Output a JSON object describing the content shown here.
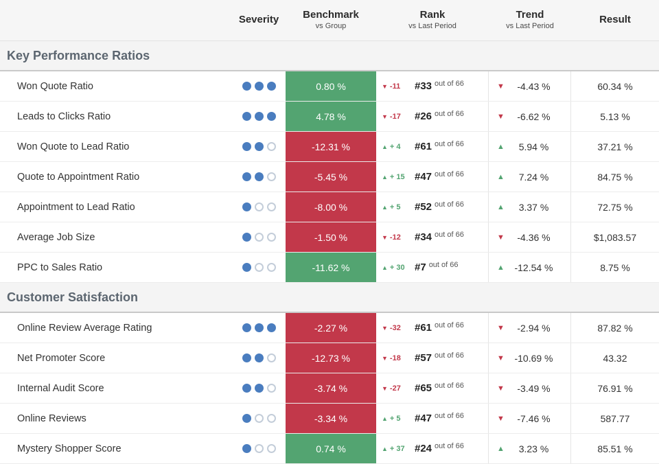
{
  "header": {
    "columns": [
      {
        "label": "Severity",
        "sub": ""
      },
      {
        "label": "Benchmark",
        "sub": "vs Group"
      },
      {
        "label": "Rank",
        "sub": "vs Last Period"
      },
      {
        "label": "Trend",
        "sub": "vs Last Period"
      },
      {
        "label": "Result",
        "sub": ""
      }
    ]
  },
  "colors": {
    "positive": "#53a471",
    "negative": "#c2384a",
    "severity_dot": "#4a7dbf"
  },
  "sections": [
    {
      "title": "Key Performance Ratios",
      "rows": [
        {
          "name": "Won Quote Ratio",
          "severity": 3,
          "benchmark": "0.80 %",
          "benchmark_state": "positive",
          "rank_dir": "down",
          "rank_delta": "-11",
          "rank": "#33",
          "rank_of": "out of 66",
          "trend_dir": "down",
          "trend": "-4.43 %",
          "result": "60.34 %"
        },
        {
          "name": "Leads to Clicks Ratio",
          "severity": 3,
          "benchmark": "4.78 %",
          "benchmark_state": "positive",
          "rank_dir": "down",
          "rank_delta": "-17",
          "rank": "#26",
          "rank_of": "out of 66",
          "trend_dir": "down",
          "trend": "-6.62 %",
          "result": "5.13 %"
        },
        {
          "name": "Won Quote to Lead Ratio",
          "severity": 2,
          "benchmark": "-12.31 %",
          "benchmark_state": "negative",
          "rank_dir": "up",
          "rank_delta": "+ 4",
          "rank": "#61",
          "rank_of": "out of 66",
          "trend_dir": "up",
          "trend": "5.94 %",
          "result": "37.21 %"
        },
        {
          "name": "Quote to Appointment Ratio",
          "severity": 2,
          "benchmark": "-5.45 %",
          "benchmark_state": "negative",
          "rank_dir": "up",
          "rank_delta": "+ 15",
          "rank": "#47",
          "rank_of": "out of 66",
          "trend_dir": "up",
          "trend": "7.24 %",
          "result": "84.75 %"
        },
        {
          "name": "Appointment to Lead Ratio",
          "severity": 1,
          "benchmark": "-8.00 %",
          "benchmark_state": "negative",
          "rank_dir": "up",
          "rank_delta": "+ 5",
          "rank": "#52",
          "rank_of": "out of 66",
          "trend_dir": "up",
          "trend": "3.37 %",
          "result": "72.75 %"
        },
        {
          "name": "Average Job Size",
          "severity": 1,
          "benchmark": "-1.50 %",
          "benchmark_state": "negative",
          "rank_dir": "down",
          "rank_delta": "-12",
          "rank": "#34",
          "rank_of": "out of 66",
          "trend_dir": "down",
          "trend": "-4.36 %",
          "result": "$1,083.57"
        },
        {
          "name": "PPC to Sales Ratio",
          "severity": 1,
          "benchmark": "-11.62 %",
          "benchmark_state": "positive",
          "rank_dir": "up",
          "rank_delta": "+ 30",
          "rank": "#7",
          "rank_of": "out of 66",
          "trend_dir": "up",
          "trend": "-12.54 %",
          "result": "8.75 %"
        }
      ]
    },
    {
      "title": "Customer Satisfaction",
      "rows": [
        {
          "name": "Online Review Average Rating",
          "severity": 3,
          "benchmark": "-2.27 %",
          "benchmark_state": "negative",
          "rank_dir": "down",
          "rank_delta": "-32",
          "rank": "#61",
          "rank_of": "out of 66",
          "trend_dir": "down",
          "trend": "-2.94 %",
          "result": "87.82 %"
        },
        {
          "name": "Net Promoter Score",
          "severity": 2,
          "benchmark": "-12.73 %",
          "benchmark_state": "negative",
          "rank_dir": "down",
          "rank_delta": "-18",
          "rank": "#57",
          "rank_of": "out of 66",
          "trend_dir": "down",
          "trend": "-10.69 %",
          "result": "43.32"
        },
        {
          "name": "Internal Audit Score",
          "severity": 2,
          "benchmark": "-3.74 %",
          "benchmark_state": "negative",
          "rank_dir": "down",
          "rank_delta": "-27",
          "rank": "#65",
          "rank_of": "out of 66",
          "trend_dir": "down",
          "trend": "-3.49 %",
          "result": "76.91 %"
        },
        {
          "name": "Online Reviews",
          "severity": 1,
          "benchmark": "-3.34 %",
          "benchmark_state": "negative",
          "rank_dir": "up",
          "rank_delta": "+ 5",
          "rank": "#47",
          "rank_of": "out of 66",
          "trend_dir": "down",
          "trend": "-7.46 %",
          "result": "587.77"
        },
        {
          "name": "Mystery Shopper Score",
          "severity": 1,
          "benchmark": "0.74 %",
          "benchmark_state": "positive",
          "rank_dir": "up",
          "rank_delta": "+ 37",
          "rank": "#24",
          "rank_of": "out of 66",
          "trend_dir": "up",
          "trend": "3.23 %",
          "result": "85.51 %"
        }
      ]
    }
  ]
}
